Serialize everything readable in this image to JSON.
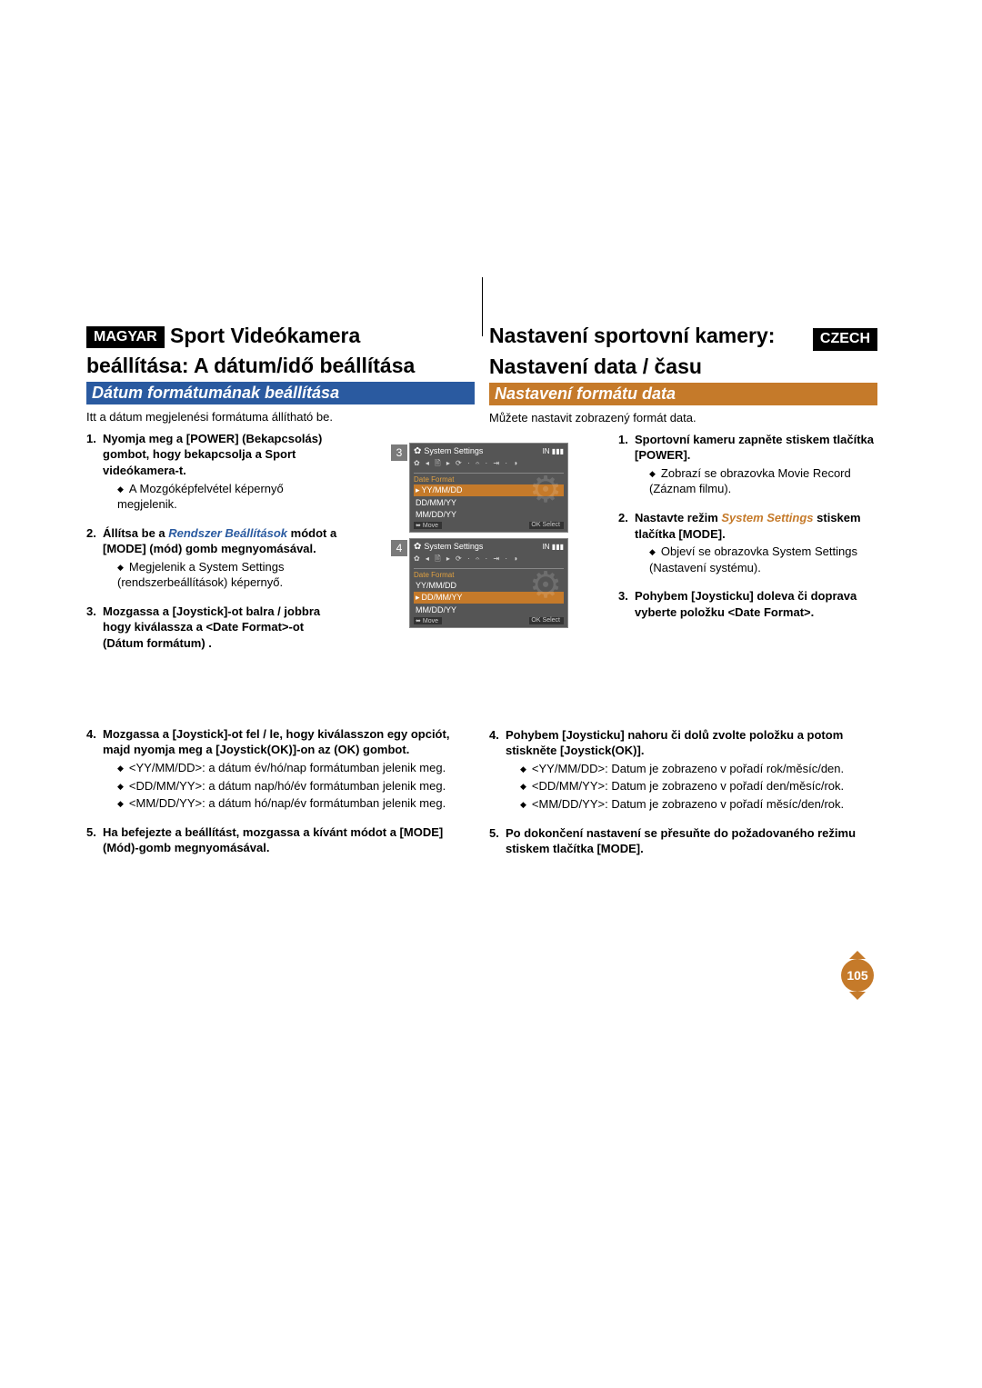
{
  "left": {
    "lang_badge": "MAGYAR",
    "title_line1": "Sport Videókamera",
    "title_line2": "beállítása: A dátum/idő beállítása",
    "section_title": "Dátum formátumának beállítása",
    "section_color": "#2a5aa0",
    "intro": "Itt a dátum megjelenési formátuma állítható be.",
    "steps": [
      {
        "n": "1.",
        "title": "Nyomja meg a [POWER] (Bekapcsolás) gombot, hogy bekapcsolja a Sport videókamera-t.",
        "subs": [
          "A Mozgóképfelvétel képernyő megjelenik."
        ]
      },
      {
        "n": "2.",
        "title_pre": "Állítsa be a ",
        "title_em": "Rendszer Beállítások",
        "title_post": " módot a [MODE] (mód) gomb megnyomásával.",
        "subs": [
          "Megjelenik a System Settings (rendszerbeállítások) képernyő."
        ]
      },
      {
        "n": "3.",
        "title": "Mozgassa a [Joystick]-ot balra / jobbra hogy kiválassza a <Date Format>-ot (Dátum formátum) ."
      },
      {
        "n": "4.",
        "title": "Mozgassa a [Joystick]-ot fel / le, hogy kiválasszon egy opciót, majd nyomja meg a [Joystick(OK)]-on az (OK) gombot.",
        "subs": [
          "<YY/MM/DD>: a dátum év/hó/nap formátumban jelenik meg.",
          "<DD/MM/YY>: a dátum nap/hó/év formátumban jelenik meg.",
          "<MM/DD/YY>: a dátum hó/nap/év formátumban jelenik meg."
        ]
      },
      {
        "n": "5.",
        "title": "Ha befejezte a beállítást, mozgassa a kívánt módot a [MODE] (Mód)-gomb megnyomásával."
      }
    ]
  },
  "right": {
    "lang_badge": "CZECH",
    "title_line1": "Nastavení sportovní kamery:",
    "title_line2": "Nastavení data / času",
    "section_title": "Nastavení formátu data",
    "section_color": "#c57a2a",
    "intro": "Můžete nastavit zobrazený formát data.",
    "steps": [
      {
        "n": "1.",
        "title": "Sportovní kameru zapněte stiskem tlačítka [POWER].",
        "subs": [
          "Zobrazí se obrazovka Movie Record (Záznam filmu)."
        ]
      },
      {
        "n": "2.",
        "title_pre": "Nastavte režim ",
        "title_em": "System Settings",
        "title_post": " stiskem tlačítka [MODE].",
        "subs": [
          "Objeví se obrazovka System Settings (Nastavení systému)."
        ]
      },
      {
        "n": "3.",
        "title": "Pohybem [Joysticku] doleva či doprava vyberte položku <Date Format>."
      },
      {
        "n": "4.",
        "title": "Pohybem [Joysticku] nahoru či dolů zvolte položku a potom stiskněte [Joystick(OK)].",
        "subs": [
          "<YY/MM/DD>: Datum je zobrazeno v pořadí rok/měsíc/den.",
          "<DD/MM/YY>: Datum je zobrazeno v pořadí den/měsíc/rok.",
          "<MM/DD/YY>: Datum je zobrazeno v pořadí měsíc/den/rok."
        ]
      },
      {
        "n": "5.",
        "title": "Po dokončení nastavení se přesuňte do požadovaného režimu stiskem tlačítka [MODE]."
      }
    ]
  },
  "screens": [
    {
      "num": "3",
      "sys": "System Settings",
      "date_label": "Date Format",
      "options": [
        "YY/MM/DD",
        "DD/MM/YY",
        "MM/DD/YY"
      ],
      "selected_index": 0,
      "move": "Move",
      "select": "Select",
      "card": "IN",
      "accent": "#2a5aa0"
    },
    {
      "num": "4",
      "sys": "System Settings",
      "date_label": "Date Format",
      "options": [
        "YY/MM/DD",
        "DD/MM/YY",
        "MM/DD/YY"
      ],
      "selected_index": 1,
      "move": "Move",
      "select": "Select",
      "card": "IN",
      "accent": "#c57a2a"
    }
  ],
  "page_number": "105",
  "page_number_color": "#c57a2a"
}
